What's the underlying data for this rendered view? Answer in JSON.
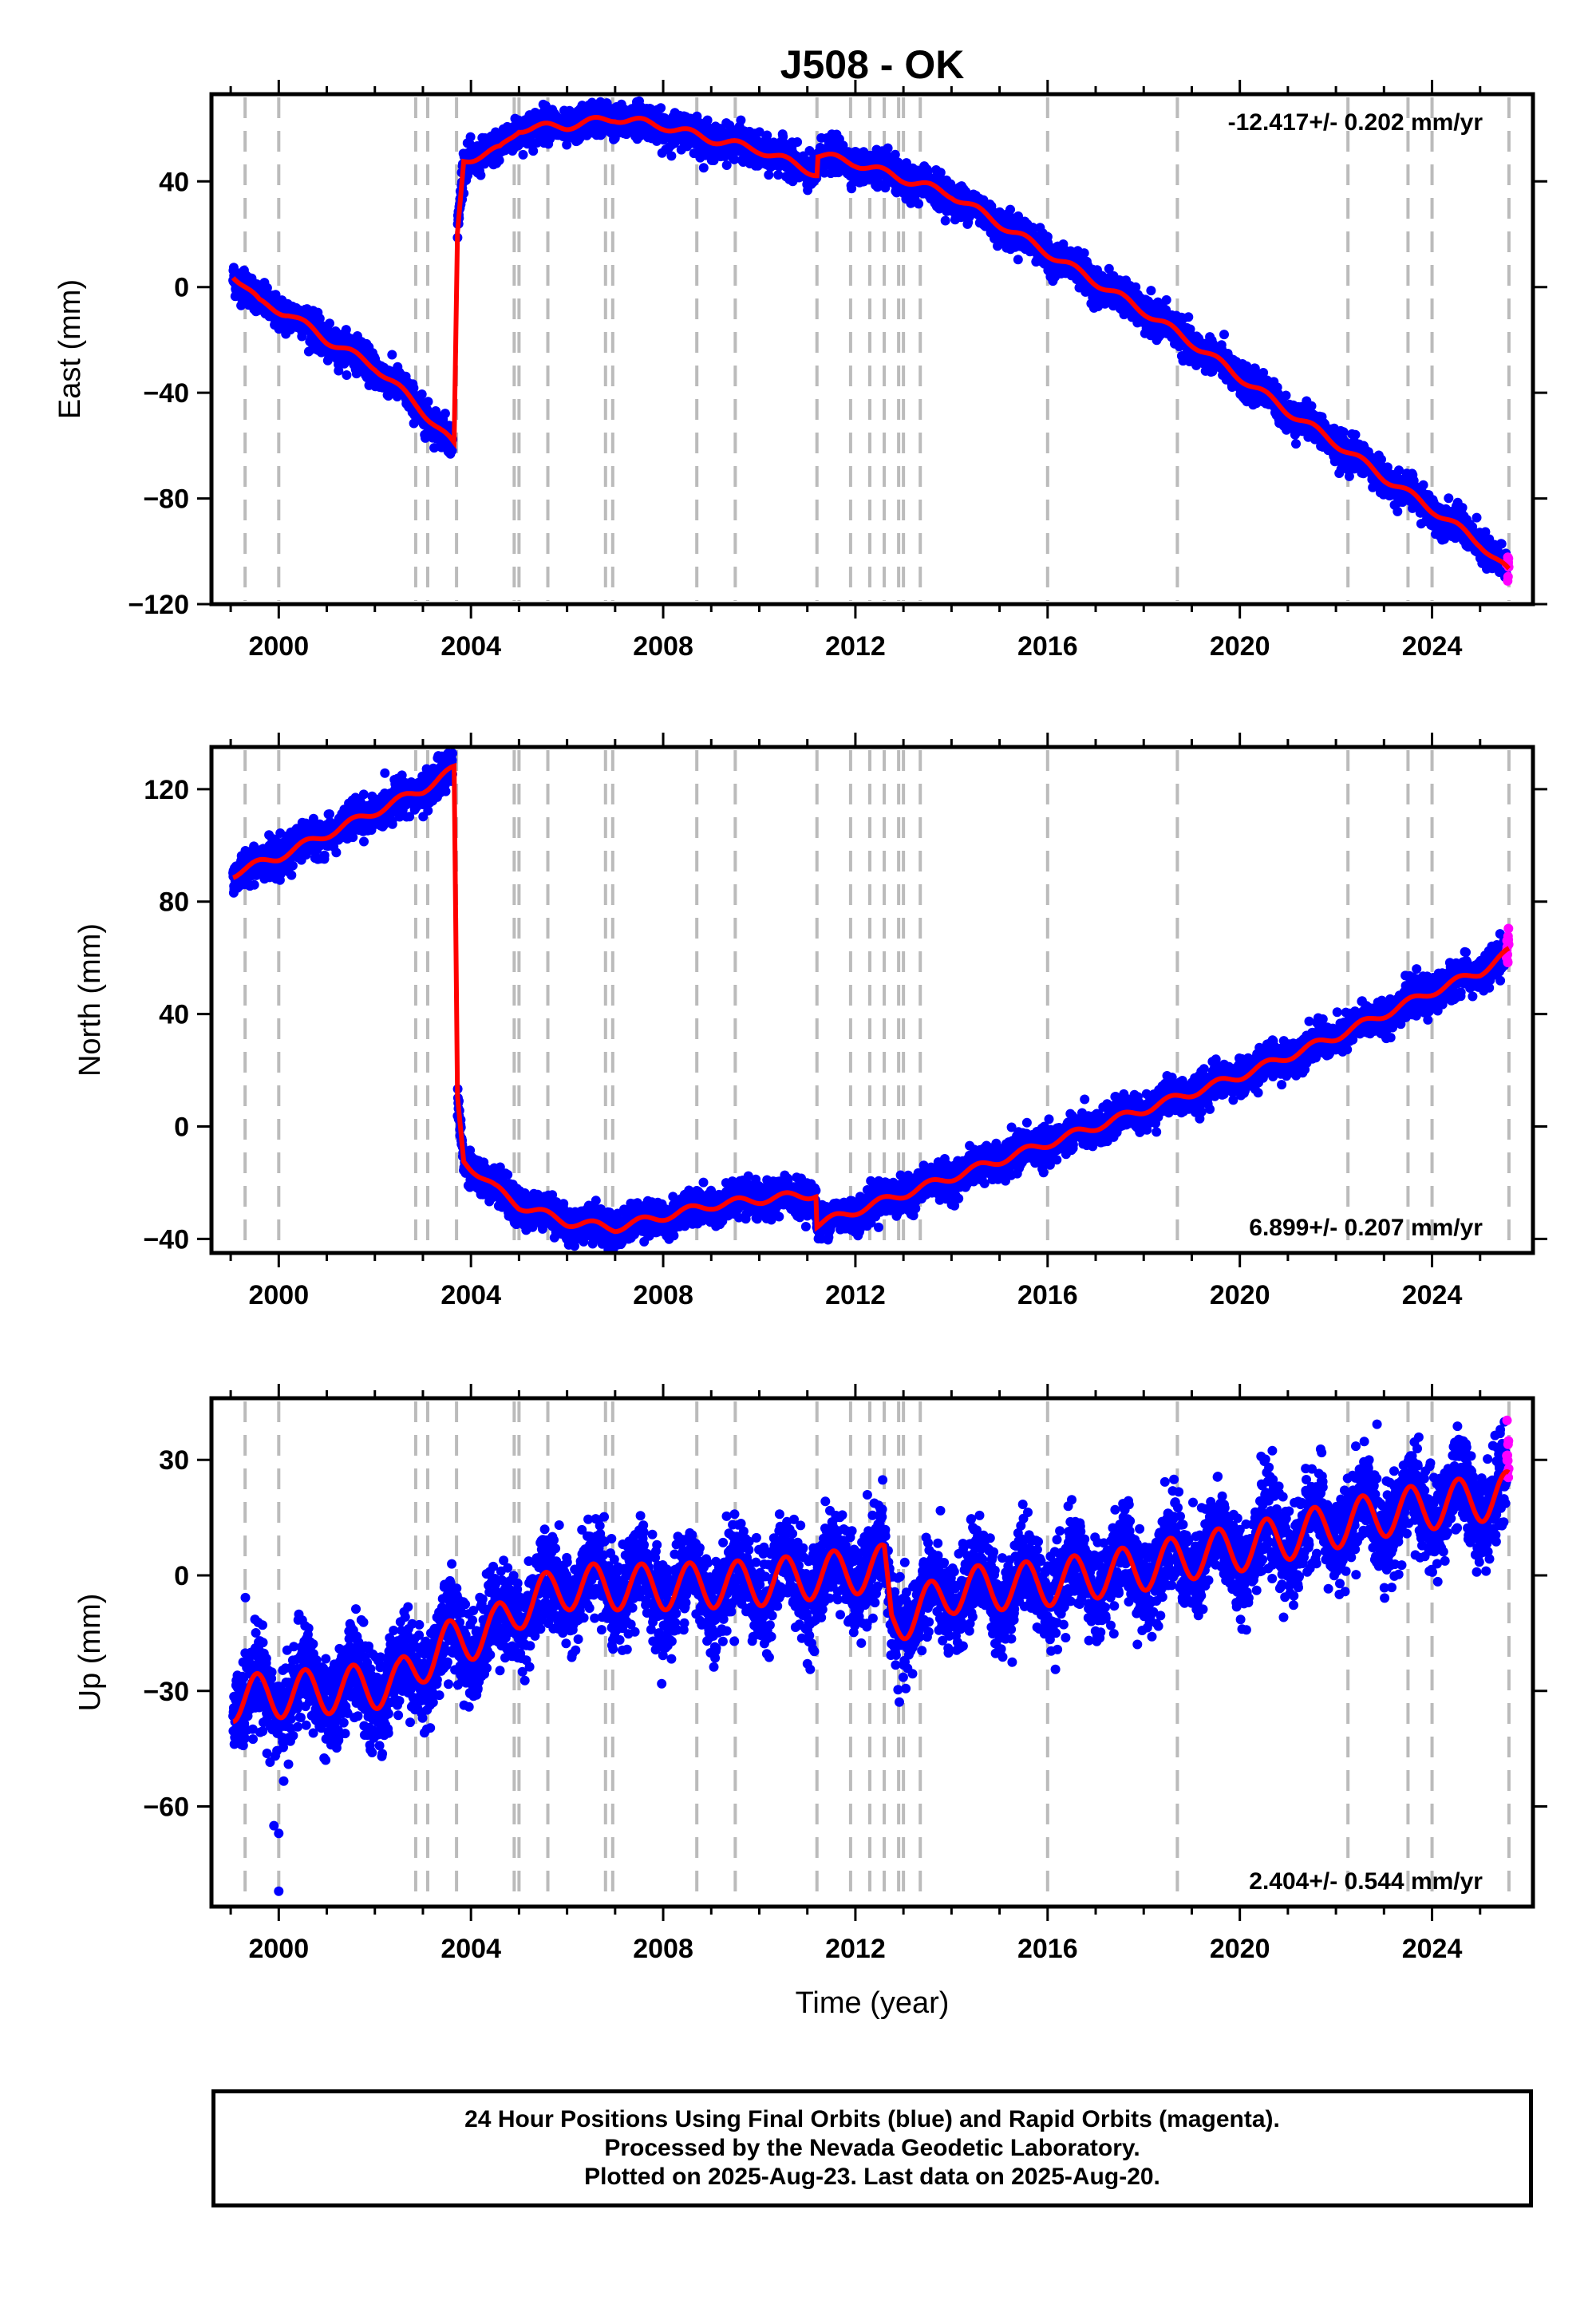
{
  "chart_data": {
    "type": "scatter",
    "title": "J508 - OK",
    "xlabel": "Time (year)",
    "xlim": [
      1998.6,
      2026.1
    ],
    "x_ticks": [
      2000,
      2004,
      2008,
      2012,
      2016,
      2020,
      2024
    ],
    "x_tick_labels": [
      "2000",
      "2004",
      "2008",
      "2012",
      "2016",
      "2020",
      "2024"
    ],
    "event_lines": [
      1999.3,
      2000.0,
      2002.85,
      2003.1,
      2003.7,
      2004.9,
      2005.0,
      2005.6,
      2006.8,
      2006.95,
      2008.7,
      2009.5,
      2011.2,
      2011.9,
      2012.3,
      2012.6,
      2012.9,
      2013.0,
      2013.35,
      2016.0,
      2018.7,
      2022.25,
      2023.5,
      2024.0,
      2025.6
    ],
    "panels": [
      {
        "name": "east",
        "ylabel": "East (mm)",
        "ylim": [
          -120,
          73
        ],
        "y_ticks": [
          -120,
          -80,
          -40,
          0,
          40
        ],
        "y_tick_labels": [
          "−120",
          "−80",
          "−40",
          "0",
          "40"
        ],
        "rate": "-12.417+/- 0.202 mm/yr",
        "rate_position": "top-right",
        "model_breakpoints": [
          [
            1999.05,
            5
          ],
          [
            1999.6,
            -6
          ],
          [
            2000.2,
            -10
          ],
          [
            2001.0,
            -20
          ],
          [
            2002.0,
            -30
          ],
          [
            2002.9,
            -45
          ],
          [
            2003.65,
            -60
          ],
          [
            2003.72,
            20
          ],
          [
            2003.85,
            48
          ],
          [
            2004.6,
            52
          ],
          [
            2005.0,
            60
          ],
          [
            2006.0,
            61
          ],
          [
            2007.0,
            64
          ],
          [
            2008.0,
            61
          ],
          [
            2009.0,
            56
          ],
          [
            2010.0,
            52
          ],
          [
            2011.2,
            43
          ],
          [
            2011.22,
            50
          ],
          [
            2012.0,
            47
          ],
          [
            2013.0,
            41
          ],
          [
            2014.0,
            35
          ],
          [
            2015.0,
            24
          ],
          [
            2016.0,
            13
          ],
          [
            2017.0,
            2
          ],
          [
            2018.0,
            -9
          ],
          [
            2019.0,
            -21
          ],
          [
            2020.0,
            -34
          ],
          [
            2021.0,
            -47
          ],
          [
            2022.0,
            -59
          ],
          [
            2023.0,
            -72
          ],
          [
            2024.0,
            -84
          ],
          [
            2025.0,
            -97
          ],
          [
            2025.6,
            -108
          ]
        ],
        "scatter_spread": 3,
        "seasonal_amplitude": 1.5
      },
      {
        "name": "north",
        "ylabel": "North (mm)",
        "ylim": [
          -45,
          135
        ],
        "y_ticks": [
          -40,
          0,
          40,
          80,
          120
        ],
        "y_tick_labels": [
          "−40",
          "0",
          "40",
          "80",
          "120"
        ],
        "rate": "6.899+/- 0.207 mm/yr",
        "rate_position": "bottom-right",
        "model_breakpoints": [
          [
            1999.05,
            90
          ],
          [
            2000.0,
            96
          ],
          [
            2001.0,
            104
          ],
          [
            2002.0,
            112
          ],
          [
            2003.0,
            120
          ],
          [
            2003.65,
            127
          ],
          [
            2003.72,
            10
          ],
          [
            2003.85,
            -12
          ],
          [
            2004.5,
            -22
          ],
          [
            2005.0,
            -28
          ],
          [
            2006.0,
            -34
          ],
          [
            2007.0,
            -36
          ],
          [
            2008.0,
            -32
          ],
          [
            2009.0,
            -28
          ],
          [
            2010.0,
            -26
          ],
          [
            2011.18,
            -24
          ],
          [
            2011.2,
            -35
          ],
          [
            2012.0,
            -30
          ],
          [
            2013.0,
            -24
          ],
          [
            2014.0,
            -18
          ],
          [
            2015.0,
            -12
          ],
          [
            2016.0,
            -6
          ],
          [
            2017.0,
            0
          ],
          [
            2018.0,
            6
          ],
          [
            2019.0,
            12
          ],
          [
            2020.0,
            18
          ],
          [
            2021.0,
            25
          ],
          [
            2022.0,
            32
          ],
          [
            2023.0,
            40
          ],
          [
            2024.0,
            48
          ],
          [
            2025.0,
            55
          ],
          [
            2025.6,
            62
          ]
        ],
        "scatter_spread": 3,
        "seasonal_amplitude": 1.5
      },
      {
        "name": "up",
        "ylabel": "Up (mm)",
        "ylim": [
          -86,
          46
        ],
        "y_ticks": [
          -60,
          -30,
          0,
          30
        ],
        "y_tick_labels": [
          "−60",
          "−30",
          "0",
          "30"
        ],
        "rate": "2.404+/- 0.544 mm/yr",
        "rate_position": "bottom-right",
        "model_breakpoints": [
          [
            1999.05,
            -32
          ],
          [
            2001.0,
            -30
          ],
          [
            2002.5,
            -28
          ],
          [
            2003.0,
            -22
          ],
          [
            2003.5,
            -18
          ],
          [
            2004.5,
            -14
          ],
          [
            2005.0,
            -8
          ],
          [
            2006.0,
            -3
          ],
          [
            2008.0,
            -3
          ],
          [
            2010.0,
            -2
          ],
          [
            2012.6,
            2
          ],
          [
            2012.75,
            -12
          ],
          [
            2013.5,
            -8
          ],
          [
            2014.0,
            -4
          ],
          [
            2015.0,
            -3
          ],
          [
            2016.0,
            -2
          ],
          [
            2017.0,
            0
          ],
          [
            2018.0,
            2
          ],
          [
            2019.0,
            5
          ],
          [
            2020.0,
            7
          ],
          [
            2021.0,
            10
          ],
          [
            2022.0,
            13
          ],
          [
            2023.0,
            16
          ],
          [
            2024.0,
            18
          ],
          [
            2025.6,
            21
          ]
        ],
        "scatter_spread": 6,
        "seasonal_amplitude": 6,
        "outliers": [
          [
            2000.0,
            -82
          ],
          [
            2000.0,
            -67
          ],
          [
            1999.9,
            -65
          ]
        ]
      }
    ],
    "series": [
      {
        "name": "Final Orbits",
        "color": "#0000ff",
        "marker": "dot"
      },
      {
        "name": "Rapid Orbits",
        "color": "#ff00ff",
        "marker": "dot"
      },
      {
        "name": "model",
        "color": "#ff0000",
        "marker": "line"
      }
    ],
    "rapid_range": [
      2025.55,
      2025.65
    ],
    "grid": false
  },
  "footer": {
    "line1": "24 Hour Positions Using Final Orbits (blue) and Rapid Orbits (magenta).",
    "line2": "Processed by the Nevada Geodetic Laboratory.",
    "line3": "Plotted on 2025-Aug-23. Last data on 2025-Aug-20."
  },
  "colors": {
    "final": "#0000ff",
    "rapid": "#ff00ff",
    "model": "#ff0000",
    "event_line": "#bbbbbb"
  }
}
